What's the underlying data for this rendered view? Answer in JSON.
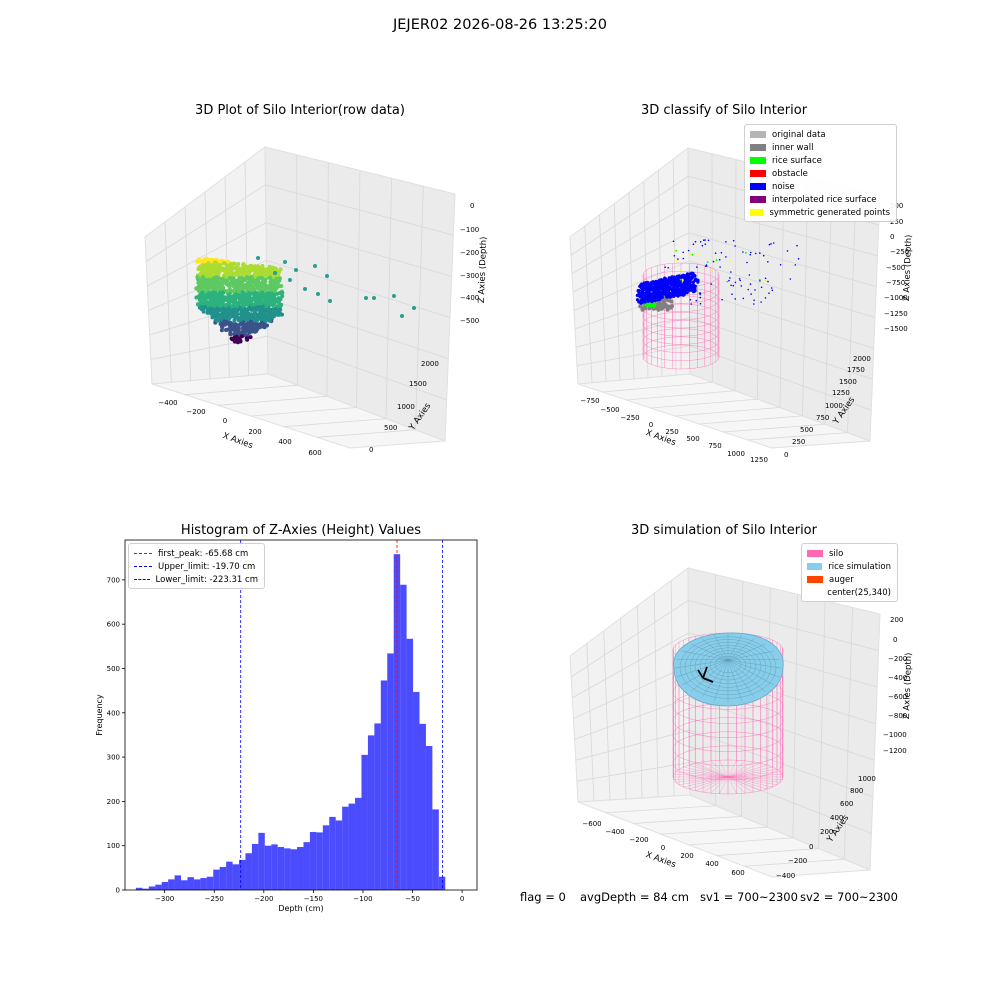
{
  "figure": {
    "suptitle": "JEJER02 2026-08-26 13:25:20"
  },
  "panels": {
    "raw": {
      "title": "3D Plot of Silo Interior(row data)",
      "xlabel": "X Axies",
      "ylabel": "Y Axies",
      "zlabel": "Z Axies (Depth)",
      "xticks": [
        "−400",
        "−200",
        "0",
        "200",
        "400",
        "600"
      ],
      "yticks": [
        "0",
        "500",
        "1000",
        "1500",
        "2000"
      ],
      "zticks": [
        "0",
        "−100",
        "−200",
        "−300",
        "−400",
        "−500"
      ]
    },
    "classify": {
      "title": "3D classify of Silo Interior",
      "xlabel": "X Axies",
      "ylabel": "Y Axies",
      "zlabel": "Z Axies (Depth)",
      "xticks": [
        "−750",
        "−500",
        "−250",
        "0",
        "250",
        "500",
        "750",
        "1000",
        "1250"
      ],
      "yticks": [
        "0",
        "250",
        "500",
        "750",
        "1000",
        "1250",
        "1500",
        "1750",
        "2000"
      ],
      "zticks": [
        "500",
        "250",
        "0",
        "−250",
        "−500",
        "−750",
        "−1000",
        "−1250",
        "−1500"
      ],
      "legend": [
        {
          "label": "original data",
          "color": "#b4b4b4"
        },
        {
          "label": "inner wall",
          "color": "#808080"
        },
        {
          "label": "rice surface",
          "color": "#00ff00"
        },
        {
          "label": "obstacle",
          "color": "#ff0000"
        },
        {
          "label": "noise",
          "color": "#0000ff"
        },
        {
          "label": "interpolated rice surface",
          "color": "#800080"
        },
        {
          "label": "symmetric generated points",
          "color": "#ffff00"
        }
      ]
    },
    "simulation": {
      "title": "3D simulation of Silo Interior",
      "xlabel": "X Axies",
      "ylabel": "Y Axies",
      "zlabel": "Z Axies (Depth)",
      "xticks": [
        "−600",
        "−400",
        "−200",
        "0",
        "200",
        "400",
        "600"
      ],
      "yticks": [
        "−400",
        "−200",
        "0",
        "200",
        "400",
        "600",
        "800",
        "1000"
      ],
      "zticks": [
        "200",
        "0",
        "−200",
        "−400",
        "−600",
        "−800",
        "−1000",
        "−1200"
      ],
      "legend": [
        {
          "label": "silo",
          "color": "#ff69b4"
        },
        {
          "label": "rice simulation",
          "color": "#87ceeb"
        },
        {
          "label": "auger",
          "color": "#ff4500"
        },
        {
          "label": "center(25,340)",
          "color": ""
        }
      ]
    }
  },
  "status": {
    "flag": "flag = 0",
    "avg_depth": "avgDepth = 84 cm",
    "sv1": "sv1 = 700~2300",
    "sv2": "sv2 = 700~2300"
  },
  "chart_data": [
    {
      "type": "histogram",
      "title": "Histogram of Z-Axies (Height) Values",
      "xlabel": "Depth (cm)",
      "ylabel": "Frequency",
      "xlim": [
        -340,
        15
      ],
      "ylim": [
        0,
        790
      ],
      "xticks": [
        -300,
        -250,
        -200,
        -150,
        -100,
        -50,
        0
      ],
      "yticks": [
        0,
        100,
        200,
        300,
        400,
        500,
        600,
        700
      ],
      "bin_width": 6.5,
      "bins_start": -329,
      "counts": [
        5,
        3,
        8,
        12,
        18,
        24,
        33,
        22,
        29,
        24,
        27,
        30,
        46,
        52,
        64,
        58,
        68,
        83,
        104,
        129,
        100,
        103,
        97,
        94,
        92,
        97,
        108,
        131,
        130,
        146,
        165,
        157,
        188,
        195,
        208,
        305,
        349,
        376,
        473,
        534,
        758,
        689,
        567,
        447,
        375,
        325,
        182,
        30
      ],
      "color": "#0000ff",
      "reference_lines": [
        {
          "label": "first_peak: -65.68 cm",
          "value": -65.68,
          "color": "#ff0000"
        },
        {
          "label": "Upper_limit: -19.70 cm",
          "value": -19.7,
          "color": "#0000ff"
        },
        {
          "label": "Lower_limit: -223.31 cm",
          "value": -223.31,
          "color": "#0000ff"
        }
      ]
    }
  ]
}
